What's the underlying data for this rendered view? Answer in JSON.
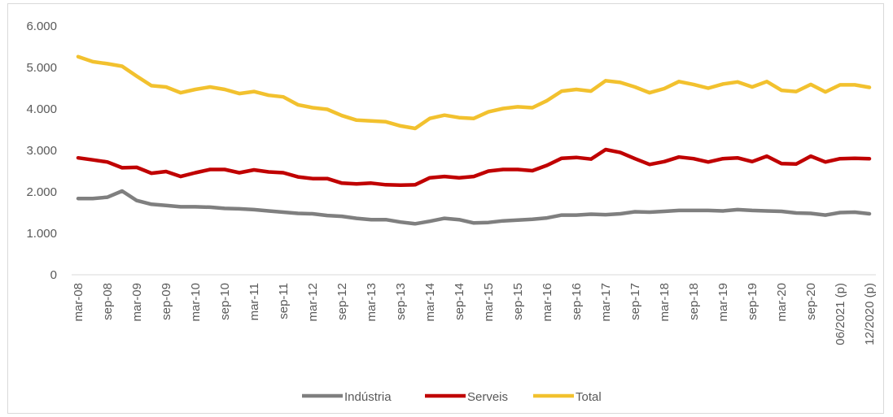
{
  "chart_data": {
    "type": "line",
    "title": "",
    "xlabel": "",
    "ylabel": "",
    "ylim": [
      0,
      6000
    ],
    "yticks": [
      0,
      1000,
      2000,
      3000,
      4000,
      5000,
      6000
    ],
    "ytick_labels": [
      "0",
      "1.000",
      "2.000",
      "3.000",
      "4.000",
      "5.000",
      "6.000"
    ],
    "x_tick_labels": [
      {
        "i": 0,
        "label": "mar-08"
      },
      {
        "i": 2,
        "label": "sep-08"
      },
      {
        "i": 4,
        "label": "mar-09"
      },
      {
        "i": 6,
        "label": "sep-09"
      },
      {
        "i": 8,
        "label": "mar-10"
      },
      {
        "i": 10,
        "label": "sep-10"
      },
      {
        "i": 12,
        "label": "mar-11"
      },
      {
        "i": 14,
        "label": "sep-11"
      },
      {
        "i": 16,
        "label": "mar-12"
      },
      {
        "i": 18,
        "label": "sep-12"
      },
      {
        "i": 20,
        "label": "mar-13"
      },
      {
        "i": 22,
        "label": "sep-13"
      },
      {
        "i": 24,
        "label": "mar-14"
      },
      {
        "i": 26,
        "label": "sep-14"
      },
      {
        "i": 28,
        "label": "mar-15"
      },
      {
        "i": 30,
        "label": "sep-15"
      },
      {
        "i": 32,
        "label": "mar-16"
      },
      {
        "i": 34,
        "label": "sep-16"
      },
      {
        "i": 36,
        "label": "mar-17"
      },
      {
        "i": 38,
        "label": "sep-17"
      },
      {
        "i": 40,
        "label": "mar-18"
      },
      {
        "i": 42,
        "label": "sep-18"
      },
      {
        "i": 44,
        "label": "mar-19"
      },
      {
        "i": 46,
        "label": "sep-19"
      },
      {
        "i": 48,
        "label": "mar-20"
      },
      {
        "i": 50,
        "label": "sep-20"
      },
      {
        "i": 52,
        "label": "06/2021 (p)"
      },
      {
        "i": 54,
        "label": "12/2020 (p)"
      }
    ],
    "series": [
      {
        "name": "Indústria",
        "color": "#7f7f7f",
        "values": [
          1840,
          1840,
          1870,
          2020,
          1790,
          1700,
          1670,
          1640,
          1640,
          1630,
          1600,
          1590,
          1570,
          1540,
          1510,
          1480,
          1470,
          1430,
          1410,
          1360,
          1330,
          1330,
          1270,
          1230,
          1290,
          1360,
          1330,
          1250,
          1260,
          1300,
          1320,
          1340,
          1370,
          1440,
          1440,
          1460,
          1450,
          1470,
          1520,
          1510,
          1530,
          1550,
          1550,
          1550,
          1540,
          1570,
          1550,
          1540,
          1530,
          1490,
          1480,
          1440,
          1500,
          1510,
          1470
        ]
      },
      {
        "name": "Serveis",
        "color": "#c00000",
        "values": [
          2820,
          2770,
          2720,
          2580,
          2590,
          2450,
          2490,
          2370,
          2460,
          2540,
          2540,
          2460,
          2530,
          2480,
          2460,
          2360,
          2320,
          2320,
          2210,
          2190,
          2210,
          2170,
          2160,
          2170,
          2340,
          2370,
          2340,
          2370,
          2500,
          2540,
          2540,
          2510,
          2640,
          2810,
          2830,
          2790,
          3020,
          2950,
          2800,
          2660,
          2730,
          2840,
          2800,
          2720,
          2800,
          2820,
          2730,
          2860,
          2680,
          2670,
          2860,
          2720,
          2800,
          2810,
          2800
        ]
      },
      {
        "name": "Total",
        "color": "#f2c12e",
        "values": [
          5260,
          5140,
          5090,
          5030,
          4790,
          4560,
          4530,
          4390,
          4470,
          4530,
          4470,
          4370,
          4420,
          4330,
          4290,
          4100,
          4030,
          3990,
          3840,
          3730,
          3710,
          3690,
          3590,
          3530,
          3770,
          3850,
          3790,
          3770,
          3930,
          4010,
          4050,
          4030,
          4200,
          4430,
          4470,
          4430,
          4680,
          4640,
          4530,
          4390,
          4490,
          4660,
          4590,
          4500,
          4600,
          4650,
          4530,
          4660,
          4450,
          4420,
          4590,
          4410,
          4580,
          4580,
          4520
        ]
      }
    ],
    "legend_position": "bottom",
    "grid": false
  }
}
